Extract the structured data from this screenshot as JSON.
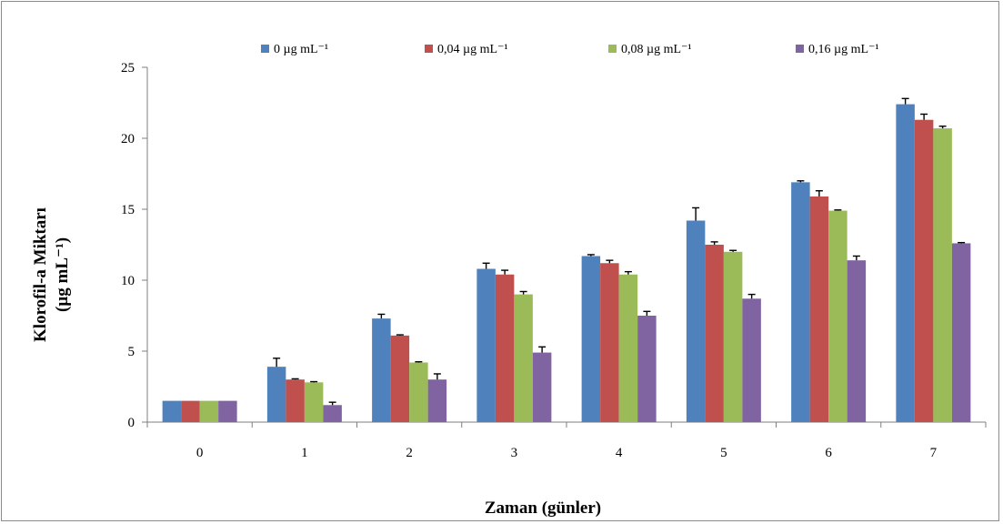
{
  "chart_data": {
    "type": "bar",
    "title": "",
    "xlabel": "Zaman (günler)",
    "ylabel_line1": "Klorofil-a Miktarı",
    "ylabel_line2": "(µg mL⁻¹)",
    "ylim": [
      0,
      25
    ],
    "yticks": [
      0,
      5,
      10,
      15,
      20,
      25
    ],
    "categories": [
      "0",
      "1",
      "2",
      "3",
      "4",
      "5",
      "6",
      "7"
    ],
    "grid": false,
    "legend_position": "top",
    "series": [
      {
        "name": "0 µg mL⁻¹",
        "color": "#4f81bd",
        "values": [
          1.5,
          3.9,
          7.3,
          10.8,
          11.7,
          14.2,
          16.9,
          22.4
        ],
        "errors": [
          0,
          0.6,
          0.3,
          0.4,
          0.1,
          0.9,
          0.1,
          0.4
        ]
      },
      {
        "name": "0,04 µg mL⁻¹",
        "color": "#c0504d",
        "values": [
          1.5,
          3.0,
          6.1,
          10.4,
          11.2,
          12.5,
          15.9,
          21.3
        ],
        "errors": [
          0,
          0.05,
          0.05,
          0.3,
          0.2,
          0.2,
          0.4,
          0.4
        ]
      },
      {
        "name": "0,08 µg mL⁻¹",
        "color": "#9bbb59",
        "values": [
          1.5,
          2.8,
          4.2,
          9.0,
          10.4,
          12.0,
          14.9,
          20.7
        ],
        "errors": [
          0,
          0.05,
          0.05,
          0.2,
          0.2,
          0.1,
          0.05,
          0.15
        ]
      },
      {
        "name": "0,16 µg mL⁻¹",
        "color": "#8064a2",
        "values": [
          1.5,
          1.2,
          3.0,
          4.9,
          7.5,
          8.7,
          11.4,
          12.6
        ],
        "errors": [
          0,
          0.2,
          0.4,
          0.4,
          0.3,
          0.3,
          0.3,
          0.05
        ]
      }
    ]
  }
}
